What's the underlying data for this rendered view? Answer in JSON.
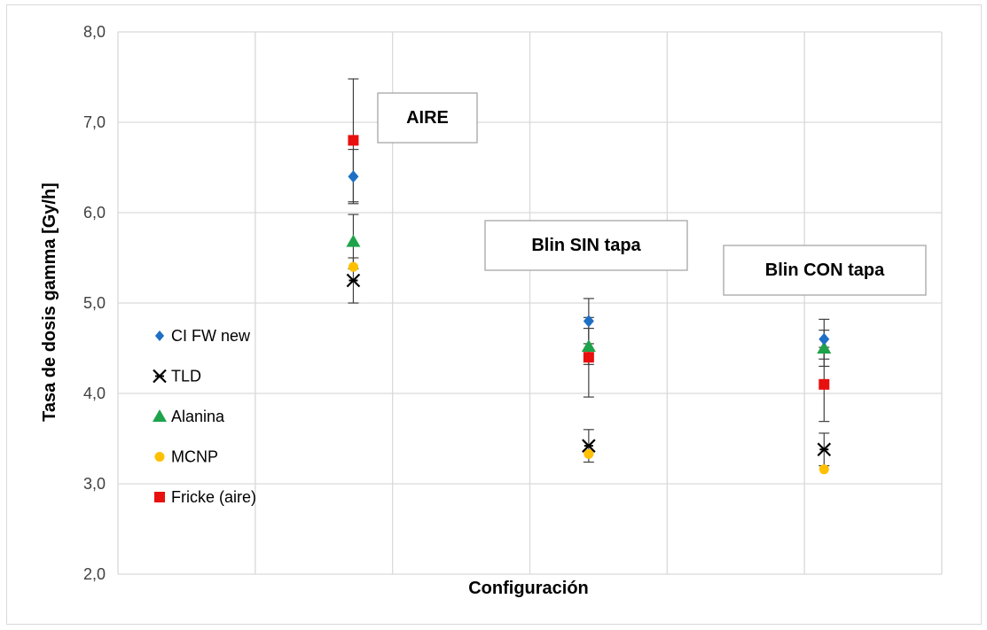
{
  "chart_data": {
    "type": "scatter",
    "xlabel": "Configuración",
    "ylabel": "Tasa de dosis gamma [Gy/h]",
    "ylim": [
      2.0,
      8.0
    ],
    "yticks": [
      "2,0",
      "3,0",
      "4,0",
      "5,0",
      "6,0",
      "7,0",
      "8,0"
    ],
    "categories": [
      "AIRE",
      "Blin SIN tapa",
      "Blin CON tapa"
    ],
    "grid": true,
    "legend_position": "left",
    "series": [
      {
        "name": "CI FW new",
        "marker": "diamond",
        "color": "#1f6fc5",
        "values": [
          6.4,
          4.8,
          4.6
        ],
        "err": [
          0.3,
          0.25,
          0.22
        ]
      },
      {
        "name": "TLD",
        "marker": "asterisk",
        "color": "#000000",
        "values": [
          5.25,
          3.42,
          3.38
        ],
        "err": [
          0.25,
          0.18,
          0.18
        ]
      },
      {
        "name": "Alanina",
        "marker": "triangle",
        "color": "#1ea34a",
        "values": [
          5.68,
          4.52,
          4.5
        ],
        "err": [
          0.3,
          0.2,
          0.2
        ]
      },
      {
        "name": "MCNP",
        "marker": "circle",
        "color": "#ffc000",
        "values": [
          5.4,
          3.33,
          3.16
        ],
        "err": [
          0.0,
          0.0,
          0.0
        ]
      },
      {
        "name": "Fricke (aire)",
        "marker": "square",
        "color": "#e8100f",
        "values": [
          6.8,
          4.4,
          4.1
        ],
        "err": [
          0.68,
          0.44,
          0.41
        ]
      }
    ],
    "annotations": [
      {
        "text": "AIRE",
        "category": "AIRE"
      },
      {
        "text": "Blin SIN tapa",
        "category": "Blin SIN tapa"
      },
      {
        "text": "Blin CON tapa",
        "category": "Blin CON tapa"
      }
    ]
  }
}
